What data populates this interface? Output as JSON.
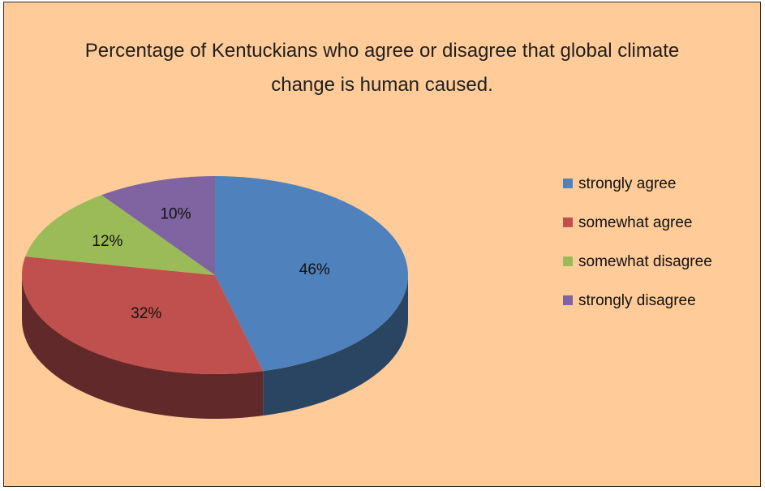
{
  "chart_data": {
    "type": "pie",
    "title_lines": [
      "Percentage of Kentuckians who agree or disagree that global climate",
      "change is human caused."
    ],
    "categories": [
      "strongly agree",
      "somewhat agree",
      "somewhat disagree",
      "strongly disagree"
    ],
    "values": [
      46,
      32,
      12,
      10
    ],
    "data_labels": [
      "46%",
      "32%",
      "12%",
      "10%"
    ],
    "legend_position": "right",
    "style": "3d-pie",
    "colors": [
      "#4F81BD",
      "#C0504D",
      "#9BBB59",
      "#8064A2"
    ],
    "side_colors": [
      "#2A4562",
      "#61292A",
      "#4E602D",
      "#423352"
    ],
    "background_color": "#FFCC99"
  }
}
